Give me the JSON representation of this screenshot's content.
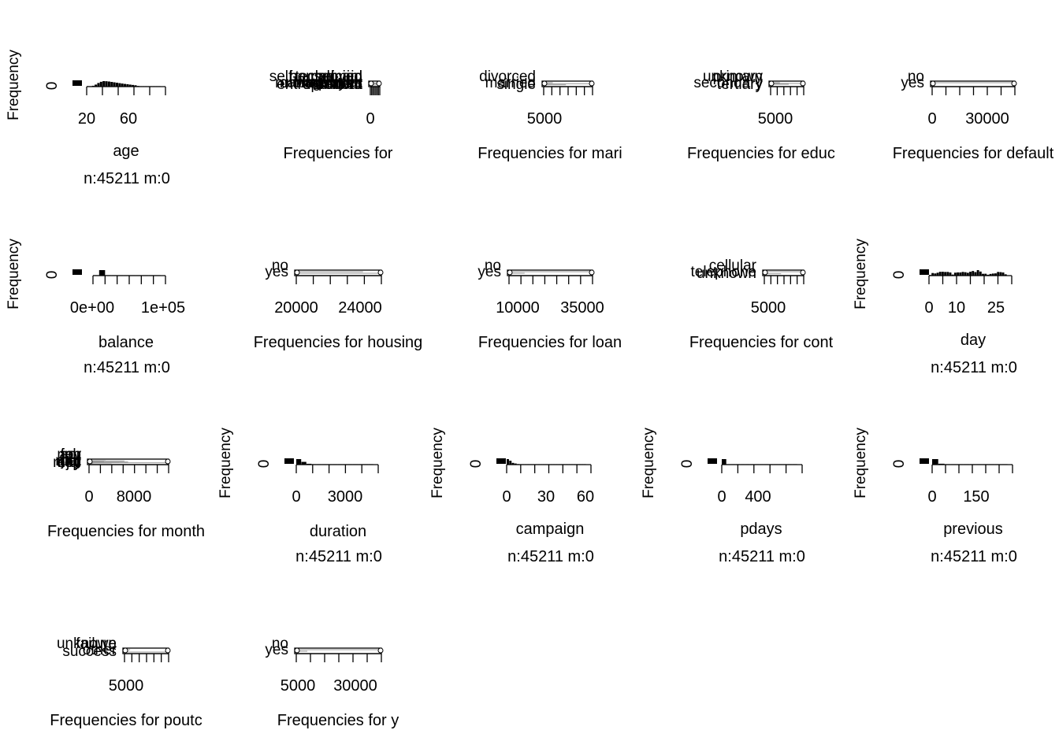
{
  "chart_data": [
    {
      "type": "bar",
      "panel": "age-histogram",
      "ylabel": "Frequency",
      "ytick": "0",
      "xticks": [
        "20",
        "60"
      ],
      "xlim": [
        18,
        95
      ],
      "title": "age",
      "subtitle": "n:45211 m:0",
      "values": [
        90,
        200,
        650,
        1500,
        2700,
        3600,
        4100,
        4000,
        3800,
        3500,
        3200,
        2900,
        2600,
        2300,
        2000,
        1800,
        1500,
        1250,
        1000,
        500,
        120,
        60,
        40,
        30,
        20,
        10,
        5,
        3
      ]
    },
    {
      "type": "bar",
      "panel": "job-frequencies",
      "xticks": [
        "0"
      ],
      "title": "Frequencies for",
      "categories": [
        "admin.",
        "blue-collar",
        "entrepreneur",
        "housemaid",
        "management",
        "retired",
        "self-employed",
        "services",
        "student",
        "technician",
        "unemployed",
        "unknown"
      ],
      "values": [
        5171,
        9732,
        1487,
        1240,
        9458,
        2264,
        1579,
        4154,
        938,
        7597,
        1303,
        288
      ]
    },
    {
      "type": "bar",
      "panel": "marital-frequencies",
      "xticks": [
        "5000"
      ],
      "title": "Frequencies for mari",
      "categories": [
        "divorced",
        "married",
        "single"
      ],
      "values": [
        5207,
        27214,
        12790
      ]
    },
    {
      "type": "bar",
      "panel": "education-frequencies",
      "xticks": [
        "5000"
      ],
      "title": "Frequencies for educ",
      "categories": [
        "primary",
        "secondary",
        "tertiary",
        "unknown"
      ],
      "values": [
        6851,
        23202,
        13301,
        1857
      ]
    },
    {
      "type": "bar",
      "panel": "default-frequencies",
      "xticks": [
        "0",
        "30000"
      ],
      "title": "Frequencies for default",
      "categories": [
        "no",
        "yes"
      ],
      "values": [
        44396,
        815
      ]
    },
    {
      "type": "bar",
      "panel": "balance-histogram",
      "ylabel": "Frequency",
      "ytick": "0",
      "xticks": [
        "0e+00",
        "1e+05"
      ],
      "xlim": [
        -8019,
        102127
      ],
      "title": "balance",
      "subtitle": "n:45211 m:0",
      "values": [
        800,
        43000,
        1100,
        200,
        60,
        20,
        10,
        5,
        3,
        2,
        1
      ]
    },
    {
      "type": "bar",
      "panel": "housing-frequencies",
      "xticks": [
        "20000",
        "24000"
      ],
      "title": "Frequencies for housing",
      "categories": [
        "no",
        "yes"
      ],
      "values": [
        20081,
        25130
      ]
    },
    {
      "type": "bar",
      "panel": "loan-frequencies",
      "xticks": [
        "10000",
        "35000"
      ],
      "title": "Frequencies for loan",
      "categories": [
        "no",
        "yes"
      ],
      "values": [
        37967,
        7244
      ]
    },
    {
      "type": "bar",
      "panel": "contact-frequencies",
      "xticks": [
        "5000"
      ],
      "title": "Frequencies for cont",
      "categories": [
        "cellular",
        "telephone",
        "unknown"
      ],
      "values": [
        29285,
        2906,
        13020
      ]
    },
    {
      "type": "bar",
      "panel": "day-histogram",
      "ylabel": "Frequency",
      "ytick": "0",
      "xticks": [
        "0",
        "10",
        "25"
      ],
      "xlim": [
        1,
        31
      ],
      "title": "day",
      "subtitle": "n:45211 m:0",
      "values": [
        322,
        1293,
        1079,
        1445,
        1910,
        1932,
        1817,
        1842,
        1561,
        524,
        1479,
        1603,
        1585,
        1848,
        1703,
        1415,
        1939,
        2308,
        1757,
        2752,
        2026,
        905,
        939,
        447,
        840,
        1035,
        1121,
        1830,
        1745,
        1566,
        643
      ]
    },
    {
      "type": "bar",
      "panel": "month-frequencies",
      "xticks": [
        "0",
        "8000"
      ],
      "title": "Frequencies for month",
      "categories": [
        "apr",
        "aug",
        "dec",
        "feb",
        "jan",
        "jul",
        "jun",
        "mar",
        "may",
        "nov",
        "oct",
        "sep"
      ],
      "values": [
        2932,
        6247,
        214,
        2649,
        1403,
        6895,
        5341,
        477,
        13766,
        3970,
        738,
        579
      ]
    },
    {
      "type": "bar",
      "panel": "duration-histogram",
      "ylabel": "Frequency",
      "ytick": "0",
      "xticks": [
        "0",
        "3000"
      ],
      "xlim": [
        0,
        4918
      ],
      "title": "duration",
      "subtitle": "n:45211 m:0",
      "values": [
        26000,
        13000,
        4000,
        1300,
        500,
        200,
        90,
        50,
        30,
        15,
        8,
        5,
        3,
        2,
        1
      ]
    },
    {
      "type": "bar",
      "panel": "campaign-histogram",
      "ylabel": "Frequency",
      "ytick": "0",
      "xticks": [
        "0",
        "30",
        "60"
      ],
      "xlim": [
        1,
        63
      ],
      "title": "campaign",
      "subtitle": "n:45211 m:0",
      "values": [
        17544,
        12505,
        5521,
        3522,
        1764,
        1291,
        735,
        540,
        327,
        266,
        201,
        155,
        133,
        93,
        84,
        79,
        69,
        51,
        44,
        43,
        35,
        23,
        22,
        20,
        22,
        13,
        10,
        16,
        16,
        8,
        12
      ]
    },
    {
      "type": "bar",
      "panel": "pdays-histogram",
      "ylabel": "Frequency",
      "ytick": "0",
      "xticks": [
        "0",
        "400"
      ],
      "xlim": [
        -1,
        871
      ],
      "title": "pdays",
      "subtitle": "n:45211 m:0",
      "values": [
        37000,
        900,
        1500,
        1800,
        1300,
        900,
        500,
        350,
        250,
        150,
        80,
        40,
        20,
        10,
        5,
        3
      ]
    },
    {
      "type": "bar",
      "panel": "previous-histogram",
      "ylabel": "Frequency",
      "ytick": "0",
      "xticks": [
        "0",
        "150"
      ],
      "xlim": [
        0,
        275
      ],
      "title": "previous",
      "subtitle": "n:45211 m:0",
      "values": [
        36954,
        6000,
        1500,
        450,
        150,
        60,
        30,
        20,
        10,
        5,
        3,
        1
      ]
    },
    {
      "type": "bar",
      "panel": "poutcome-frequencies",
      "xticks": [
        "5000"
      ],
      "title": "Frequencies for poutc",
      "categories": [
        "failure",
        "other",
        "success",
        "unknown"
      ],
      "values": [
        4901,
        1840,
        1511,
        36959
      ]
    },
    {
      "type": "bar",
      "panel": "y-frequencies",
      "xticks": [
        "5000",
        "30000"
      ],
      "title": "Frequencies for y",
      "categories": [
        "no",
        "yes"
      ],
      "values": [
        39922,
        5289
      ]
    }
  ]
}
